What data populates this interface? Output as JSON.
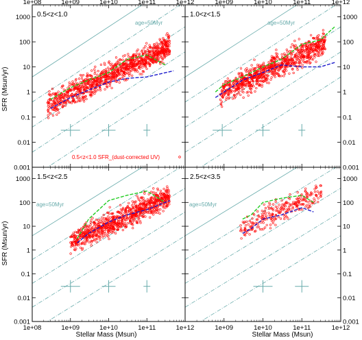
{
  "figure": {
    "xlabel": "Stellar Mass  (Msun)",
    "ylabel": "SFR  (Msun/yr)",
    "x_ticks": [
      "1e+08",
      "1e+09",
      "1e+10",
      "1e+11",
      "1e+12"
    ],
    "y_ticks": [
      "0.001",
      "0.01",
      "0.1",
      "1",
      "10",
      "100",
      "1000"
    ],
    "diag_label": "age=50Myr"
  },
  "colors": {
    "points": "#ff0000",
    "green_line": "#22cc22",
    "blue_line": "#1a1acc",
    "teal": "#66aaaa"
  },
  "chart_data": [
    {
      "type": "scatter",
      "panel_label": "0.5<z<1.0",
      "xscale": "log",
      "yscale": "log",
      "xlim": [
        100000000.0,
        1000000000000.0
      ],
      "ylim": [
        0.001,
        3000
      ],
      "points_legend": "0.5<z<1.0 SFR_(dust-corrected UV)",
      "scatter_extent": {
        "xlog": [
          8.4,
          11.6
        ],
        "ylog": [
          -1.2,
          2.5
        ]
      },
      "series": [
        {
          "x": [
            300000000.0,
            1000000000.0,
            3000000000.0,
            10000000000.0,
            30000000000.0,
            100000000000.0,
            300000000000.0
          ],
          "y": [
            0.5,
            1.5,
            3,
            6,
            20,
            30,
            12
          ]
        },
        {
          "x": [
            300000000.0,
            1000000000.0,
            3000000000.0,
            10000000000.0,
            30000000000.0,
            100000000000.0,
            500000000000.0
          ],
          "y": [
            0.22,
            0.6,
            1.2,
            2.5,
            3.5,
            4,
            7
          ]
        }
      ],
      "error_crosses": [
        {
          "x": 1000000000.0,
          "y": 0.03
        },
        {
          "x": 10000000000.0,
          "y": 0.03
        },
        {
          "x": 100000000000.0,
          "y": 0.03
        }
      ]
    },
    {
      "type": "scatter",
      "panel_label": "1.0<z<1.5",
      "xscale": "log",
      "yscale": "log",
      "xlim": [
        100000000.0,
        1000000000000.0
      ],
      "ylim": [
        0.001,
        3000
      ],
      "scatter_extent": {
        "xlog": [
          8.9,
          11.6
        ],
        "ylog": [
          -0.7,
          2.6
        ]
      },
      "series": [
        {
          "x": [
            600000000.0,
            1000000000.0,
            3000000000.0,
            10000000000.0,
            30000000000.0,
            100000000000.0,
            300000000000.0,
            700000000000.0
          ],
          "y": [
            1,
            2,
            4,
            10,
            20,
            80,
            120,
            400
          ]
        },
        {
          "x": [
            600000000.0,
            1000000000.0,
            3000000000.0,
            10000000000.0,
            30000000000.0,
            100000000000.0,
            300000000000.0,
            700000000000.0
          ],
          "y": [
            0.6,
            1,
            3,
            6,
            12,
            10,
            10,
            15
          ]
        }
      ],
      "error_crosses": [
        {
          "x": 900000000.0,
          "y": 0.03
        },
        {
          "x": 10000000000.0,
          "y": 0.03
        },
        {
          "x": 100000000000.0,
          "y": 0.03
        }
      ]
    },
    {
      "type": "scatter",
      "panel_label": "1.5<z<2.5",
      "xscale": "log",
      "yscale": "log",
      "xlim": [
        100000000.0,
        1000000000000.0
      ],
      "ylim": [
        0.001,
        3000
      ],
      "scatter_extent": {
        "xlog": [
          9.0,
          11.6
        ],
        "ylog": [
          -0.2,
          2.8
        ]
      },
      "series": [
        {
          "x": [
            1500000000.0,
            3000000000.0,
            10000000000.0,
            30000000000.0,
            100000000000.0,
            300000000000.0
          ],
          "y": [
            3,
            20,
            120,
            200,
            300,
            100
          ]
        },
        {
          "x": [
            1500000000.0,
            3000000000.0,
            10000000000.0,
            30000000000.0,
            100000000000.0,
            400000000000.0
          ],
          "y": [
            2,
            5,
            15,
            30,
            50,
            120
          ]
        }
      ],
      "error_crosses": [
        {
          "x": 1000000000.0,
          "y": 0.03
        },
        {
          "x": 10000000000.0,
          "y": 0.03
        },
        {
          "x": 100000000000.0,
          "y": 0.03
        }
      ]
    },
    {
      "type": "scatter",
      "panel_label": "2.5<z<3.5",
      "xscale": "log",
      "yscale": "log",
      "xlim": [
        100000000.0,
        1000000000000.0
      ],
      "ylim": [
        0.001,
        3000
      ],
      "scatter_extent": {
        "xlog": [
          9.4,
          11.5
        ],
        "ylog": [
          0.5,
          2.8
        ]
      },
      "series": [
        {
          "x": [
            3000000000.0,
            5000000000.0,
            10000000000.0,
            30000000000.0,
            100000000000.0,
            200000000000.0
          ],
          "y": [
            20,
            30,
            100,
            150,
            200,
            100
          ]
        },
        {
          "x": [
            3000000000.0,
            5000000000.0,
            10000000000.0,
            30000000000.0,
            100000000000.0,
            200000000000.0
          ],
          "y": [
            5,
            8,
            20,
            30,
            60,
            40
          ]
        }
      ],
      "error_crosses": [
        {
          "x": 10000000000.0,
          "y": 0.03
        },
        {
          "x": 100000000000.0,
          "y": 0.03
        }
      ]
    }
  ]
}
